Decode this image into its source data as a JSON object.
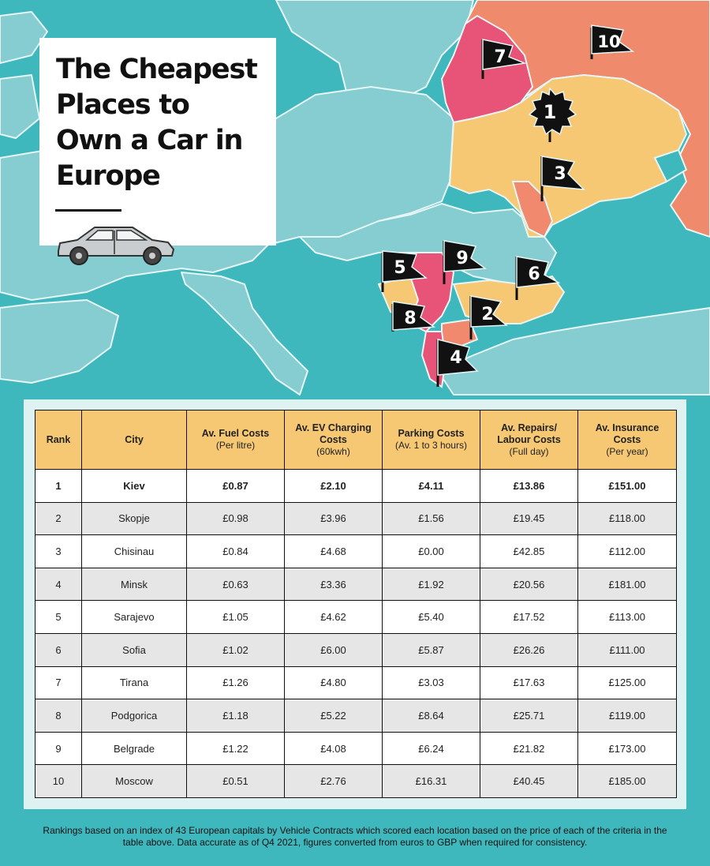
{
  "title": "The Cheapest Places to Own a Car in Europe",
  "colors": {
    "sea": "#3fb8bd",
    "land": "#85cdd0",
    "rank_1_3": "#f7c873",
    "rank_4_5": "#f0896e",
    "rank_7_9": "#e85477",
    "rank_10": "#ef8a6c",
    "table_header": "#f7c873",
    "flag": "#111111"
  },
  "map_flags": [
    {
      "rank": "1"
    },
    {
      "rank": "2"
    },
    {
      "rank": "3"
    },
    {
      "rank": "4"
    },
    {
      "rank": "5"
    },
    {
      "rank": "6"
    },
    {
      "rank": "7"
    },
    {
      "rank": "8"
    },
    {
      "rank": "9"
    },
    {
      "rank": "10"
    }
  ],
  "table": {
    "headers": [
      {
        "title": "Rank",
        "sub": ""
      },
      {
        "title": "City",
        "sub": ""
      },
      {
        "title": "Av. Fuel Costs",
        "sub": "(Per litre)"
      },
      {
        "title": "Av. EV Charging Costs",
        "sub": "(60kwh)"
      },
      {
        "title": "Parking Costs",
        "sub": "(Av. 1 to 3 hours)"
      },
      {
        "title": "Av. Repairs/ Labour Costs",
        "sub": "(Full day)"
      },
      {
        "title": "Av. Insurance Costs",
        "sub": "(Per year)"
      }
    ],
    "rows": [
      [
        "1",
        "Kiev",
        "£0.87",
        "£2.10",
        "£4.11",
        "£13.86",
        "£151.00"
      ],
      [
        "2",
        "Skopje",
        "£0.98",
        "£3.96",
        "£1.56",
        "£19.45",
        "£118.00"
      ],
      [
        "3",
        "Chisinau",
        "£0.84",
        "£4.68",
        "£0.00",
        "£42.85",
        "£112.00"
      ],
      [
        "4",
        "Minsk",
        "£0.63",
        "£3.36",
        "£1.92",
        "£20.56",
        "£181.00"
      ],
      [
        "5",
        "Sarajevo",
        "£1.05",
        "£4.62",
        "£5.40",
        "£17.52",
        "£113.00"
      ],
      [
        "6",
        "Sofia",
        "£1.02",
        "£6.00",
        "£5.87",
        "£26.26",
        "£111.00"
      ],
      [
        "7",
        "Tirana",
        "£1.26",
        "£4.80",
        "£3.03",
        "£17.63",
        "£125.00"
      ],
      [
        "8",
        "Podgorica",
        "£1.18",
        "£5.22",
        "£8.64",
        "£25.71",
        "£119.00"
      ],
      [
        "9",
        "Belgrade",
        "£1.22",
        "£4.08",
        "£6.24",
        "£21.82",
        "£173.00"
      ],
      [
        "10",
        "Moscow",
        "£0.51",
        "£2.76",
        "£16.31",
        "£40.45",
        "£185.00"
      ]
    ]
  },
  "footnote": "Rankings based on an index of 43 European capitals by Vehicle Contracts which scored each location based on the price of each of the criteria in the table above. Data accurate as of Q4 2021, figures converted from euros to GBP when required for consistency."
}
